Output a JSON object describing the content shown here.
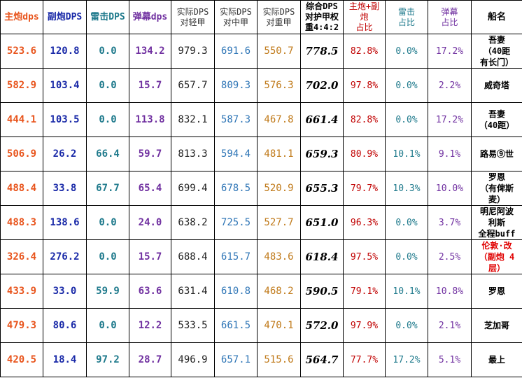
{
  "headers": {
    "main_dps": "主炮dps",
    "secondary_dps": "副炮DPS",
    "torpedo_dps": "雷击DPS",
    "barrage_dps": "弹幕dps",
    "vs_light": [
      "实际DPS",
      "对轻甲"
    ],
    "vs_medium": [
      "实际DPS",
      "对中甲"
    ],
    "vs_heavy": [
      "实际DPS",
      "对重甲"
    ],
    "composite": [
      "综合DPS",
      "对护甲权",
      "重4:4:2"
    ],
    "main_sec_ratio": [
      "主炮+副",
      "炮",
      "占比"
    ],
    "torpedo_ratio": [
      "雷击",
      "占比"
    ],
    "barrage_ratio": [
      "弹幕",
      "占比"
    ],
    "name": "船名"
  },
  "rows": [
    {
      "main": "523.6",
      "sec": "120.8",
      "torp": "0.0",
      "barr": "134.2",
      "light": "979.3",
      "medium": "691.6",
      "heavy": "550.7",
      "comp": "778.5",
      "r1": "82.8%",
      "r2": "0.0%",
      "r3": "17.2%",
      "name": "吾妻\n（40距\n有长门）",
      "red": false
    },
    {
      "main": "582.9",
      "sec": "103.4",
      "torp": "0.0",
      "barr": "15.7",
      "light": "657.7",
      "medium": "809.3",
      "heavy": "576.3",
      "comp": "702.0",
      "r1": "97.8%",
      "r2": "0.0%",
      "r3": "2.2%",
      "name": "威奇塔",
      "red": false
    },
    {
      "main": "444.1",
      "sec": "103.5",
      "torp": "0.0",
      "barr": "113.8",
      "light": "832.1",
      "medium": "587.3",
      "heavy": "467.8",
      "comp": "661.4",
      "r1": "82.8%",
      "r2": "0.0%",
      "r3": "17.2%",
      "name": "吾妻\n（40距）",
      "red": false
    },
    {
      "main": "506.9",
      "sec": "26.2",
      "torp": "66.4",
      "barr": "59.7",
      "light": "813.3",
      "medium": "594.4",
      "heavy": "481.1",
      "comp": "659.3",
      "r1": "80.9%",
      "r2": "10.1%",
      "r3": "9.1%",
      "name": "路易⑨世",
      "red": false
    },
    {
      "main": "488.4",
      "sec": "33.8",
      "torp": "67.7",
      "barr": "65.4",
      "light": "699.4",
      "medium": "678.5",
      "heavy": "520.9",
      "comp": "655.3",
      "r1": "79.7%",
      "r2": "10.3%",
      "r3": "10.0%",
      "name": "罗恩\n（有俾斯\n麦）",
      "red": false
    },
    {
      "main": "488.3",
      "sec": "138.6",
      "torp": "0.0",
      "barr": "24.0",
      "light": "638.2",
      "medium": "725.5",
      "heavy": "527.7",
      "comp": "651.0",
      "r1": "96.3%",
      "r2": "0.0%",
      "r3": "3.7%",
      "name": "明尼阿波\n利斯\n全程buff",
      "red": false
    },
    {
      "main": "326.4",
      "sec": "276.2",
      "torp": "0.0",
      "barr": "15.7",
      "light": "688.4",
      "medium": "615.7",
      "heavy": "483.6",
      "comp": "618.4",
      "r1": "97.5%",
      "r2": "0.0%",
      "r3": "2.5%",
      "name": "伦敦·改\n（副炮 4\n层）",
      "red": true
    },
    {
      "main": "433.9",
      "sec": "33.0",
      "torp": "59.9",
      "barr": "63.6",
      "light": "631.4",
      "medium": "610.8",
      "heavy": "468.2",
      "comp": "590.5",
      "r1": "79.1%",
      "r2": "10.1%",
      "r3": "10.8%",
      "name": "罗恩",
      "red": false
    },
    {
      "main": "479.3",
      "sec": "80.6",
      "torp": "0.0",
      "barr": "12.2",
      "light": "533.5",
      "medium": "661.5",
      "heavy": "470.1",
      "comp": "572.0",
      "r1": "97.9%",
      "r2": "0.0%",
      "r3": "2.1%",
      "name": "芝加哥",
      "red": false
    },
    {
      "main": "420.5",
      "sec": "18.4",
      "torp": "97.2",
      "barr": "28.7",
      "light": "496.9",
      "medium": "657.1",
      "heavy": "515.6",
      "comp": "564.7",
      "r1": "77.7%",
      "r2": "17.2%",
      "r3": "5.1%",
      "name": "最上",
      "red": false
    }
  ]
}
